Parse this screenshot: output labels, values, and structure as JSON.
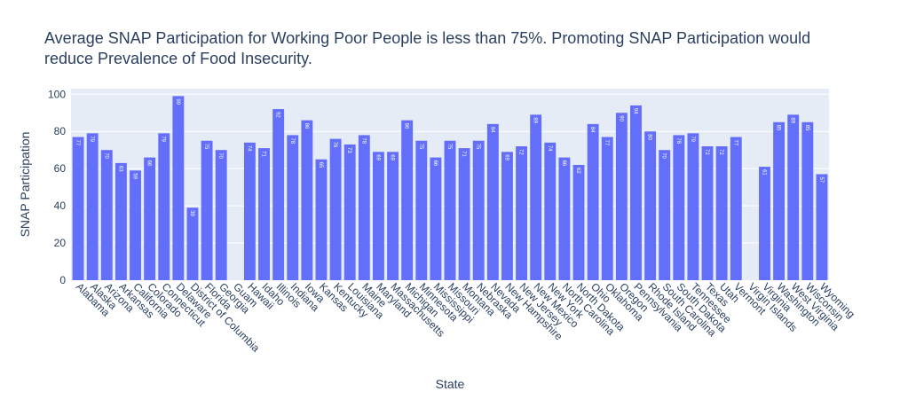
{
  "chart_data": {
    "type": "bar",
    "title": "Average SNAP Participation for Working Poor People is less than 75%. Promoting SNAP Participation would reduce Prevalence of Food Insecurity.",
    "xlabel": "State",
    "ylabel": "SNAP Participation",
    "ylim": [
      0,
      103
    ],
    "yticks": [
      0,
      20,
      40,
      60,
      80,
      100
    ],
    "grid": true,
    "bar_color": "#636efa",
    "plot_background": "#e5ecf6",
    "categories": [
      "Alabama",
      "Alaska",
      "Arizona",
      "Arkansas",
      "California",
      "Colorado",
      "Connecticut",
      "Delaware",
      "District of Columbia",
      "Florida",
      "Georgia",
      "Guam",
      "Hawaii",
      "Idaho",
      "Illinois",
      "Indiana",
      "Iowa",
      "Kansas",
      "Kentucky",
      "Louisiana",
      "Maine",
      "Maryland",
      "Massachusetts",
      "Michigan",
      "Minnesota",
      "Mississippi",
      "Missouri",
      "Montana",
      "Nebraska",
      "Nevada",
      "New Hampshire",
      "New Jersey",
      "New Mexico",
      "New York",
      "North Carolina",
      "North Dakota",
      "Ohio",
      "Oklahoma",
      "Oregon",
      "Pennsylvania",
      "Rhode Island",
      "South Carolina",
      "South Dakota",
      "Tennessee",
      "Texas",
      "Utah",
      "Vermont",
      "Virgin Islands",
      "Virginia",
      "Washington",
      "West Virginia",
      "Wisconsin",
      "Wyoming"
    ],
    "values": [
      77,
      79,
      70,
      63,
      59,
      66,
      79,
      99,
      39,
      75,
      70,
      null,
      74,
      71,
      92,
      78,
      86,
      65,
      76,
      73,
      78,
      69,
      69,
      86,
      75,
      66,
      75,
      71,
      75,
      84,
      69,
      72,
      89,
      74,
      66,
      62,
      84,
      77,
      90,
      94,
      80,
      70,
      78,
      79,
      72,
      72,
      77,
      null,
      61,
      85,
      89,
      85,
      57
    ],
    "labels": [
      "77",
      "79",
      "70",
      "63",
      "59",
      "66",
      "79",
      "99",
      "39",
      "75",
      "70",
      "",
      "74",
      "71",
      "92",
      "78",
      "86",
      "65",
      "76",
      "73",
      "78",
      "69",
      "69",
      "86",
      "75",
      "66",
      "75",
      "71",
      "75",
      "84",
      "69",
      "72",
      "89",
      "74",
      "66",
      "62",
      "84",
      "77",
      "90",
      "94",
      "80",
      "70",
      "78",
      "79",
      "72",
      "72",
      "77",
      "",
      "61",
      "85",
      "89",
      "85",
      "57"
    ]
  }
}
